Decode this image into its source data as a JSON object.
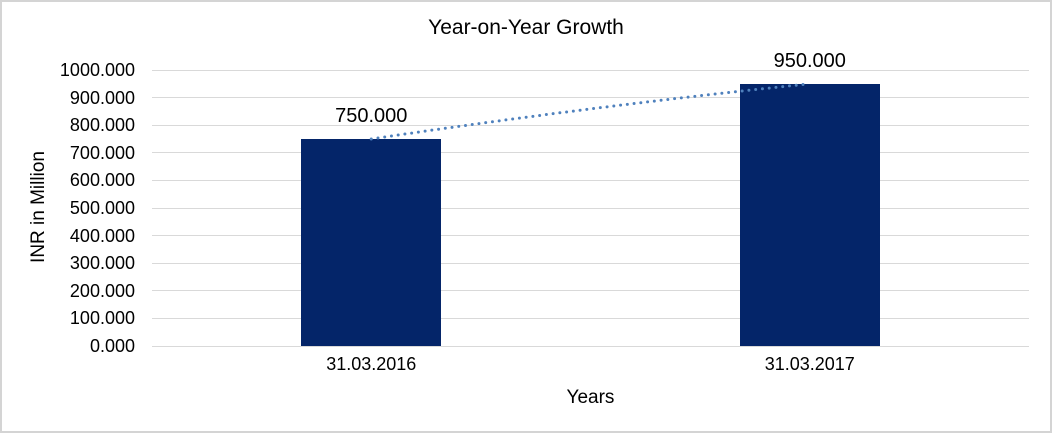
{
  "chart_data": {
    "type": "bar",
    "title": "Year-on-Year Growth",
    "xlabel": "Years",
    "ylabel": "INR in Million",
    "categories": [
      "31.03.2016",
      "31.03.2017"
    ],
    "series": [
      {
        "name": "INR in Million",
        "values": [
          750,
          950
        ]
      }
    ],
    "value_labels": [
      "750.000",
      "950.000"
    ],
    "ylim": [
      0,
      1000
    ],
    "ytick_step": 100,
    "ytick_labels": [
      "0.000",
      "100.000",
      "200.000",
      "300.000",
      "400.000",
      "500.000",
      "600.000",
      "700.000",
      "800.000",
      "900.000",
      "1000.000"
    ],
    "grid": true,
    "legend": false,
    "trendline": {
      "style": "dotted",
      "connects": "bar tops",
      "color": "#4f81bd"
    },
    "colors": {
      "bar": "#042569",
      "trendline": "#4f81bd",
      "gridline": "#d9d9d9",
      "text": "#000000",
      "background": "#ffffff",
      "border": "#d4d4d4"
    }
  }
}
